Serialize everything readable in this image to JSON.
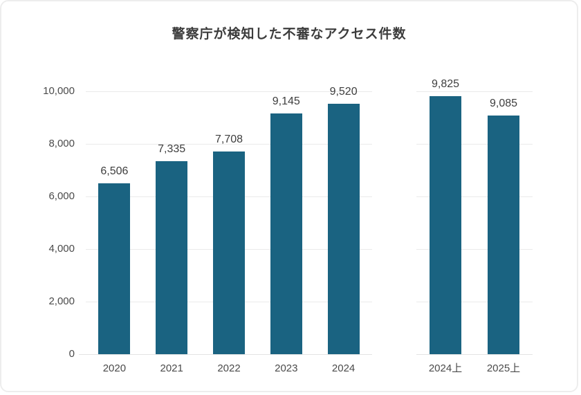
{
  "chart_data": {
    "type": "bar",
    "title": "警察庁が検知した不審なアクセス件数",
    "ylim": [
      0,
      10000
    ],
    "ytick_interval": 2000,
    "yticks": [
      {
        "value": 0,
        "label": "0"
      },
      {
        "value": 2000,
        "label": "2,000"
      },
      {
        "value": 4000,
        "label": "4,000"
      },
      {
        "value": 6000,
        "label": "6,000"
      },
      {
        "value": 8000,
        "label": "8,000"
      },
      {
        "value": 10000,
        "label": "10,000"
      }
    ],
    "grid": true,
    "legend": false,
    "panels": [
      {
        "name": "annual",
        "categories": [
          "2020",
          "2021",
          "2022",
          "2023",
          "2024"
        ],
        "values": [
          6506,
          7335,
          7708,
          9145,
          9520
        ],
        "value_labels": [
          "6,506",
          "7,335",
          "7,708",
          "9,145",
          "9,520"
        ]
      },
      {
        "name": "first-half-year",
        "categories": [
          "2024上",
          "2025上"
        ],
        "values": [
          9825,
          9085
        ],
        "value_labels": [
          "9,825",
          "9,085"
        ]
      }
    ],
    "colors": {
      "bar": "#1a6381",
      "grid": "#eaeaea",
      "title_text": "#3c3c3c",
      "value_label_text": "#3d3d3d",
      "axis_label_text": "#4a4a4a",
      "card_border": "#ededed",
      "background": "#ffffff"
    }
  }
}
